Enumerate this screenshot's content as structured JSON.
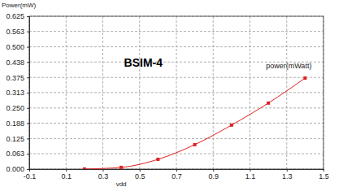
{
  "chart_data": {
    "type": "line",
    "y_label": "Power(mW)",
    "x_label": "vdd",
    "annotations": [
      "BSIM-4"
    ],
    "x": [
      0.2,
      0.4,
      0.6,
      0.8,
      1.0,
      1.2,
      1.4
    ],
    "series": [
      {
        "name": "power(mWatt)",
        "color": "#e02020",
        "marker": "square",
        "values": [
          0.0005,
          0.007,
          0.04,
          0.1,
          0.18,
          0.27,
          0.372
        ]
      }
    ],
    "xlim": [
      -0.1,
      1.5
    ],
    "xticks": [
      -0.1,
      0.1,
      0.3,
      0.5,
      0.7,
      0.9,
      1.1,
      1.3,
      1.5
    ],
    "ylim": [
      0,
      0.625
    ],
    "yticks": [
      {
        "value": 0,
        "label": "0.000"
      },
      0.063,
      0.125,
      0.188,
      {
        "value": 0.25,
        "label": "0.250"
      },
      0.313,
      0.375,
      0.438,
      {
        "value": 0.5,
        "label": "0.500"
      },
      0.563,
      0.625
    ],
    "grid": true
  }
}
